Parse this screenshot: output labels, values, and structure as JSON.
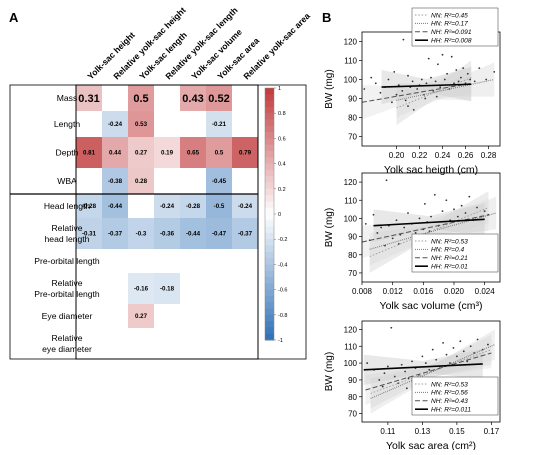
{
  "chart_data": [
    {
      "type": "heatmap",
      "panel_label": "A",
      "columns": [
        "Yolk-sac height",
        "Relative yolk-sac height",
        "Yolk-sac length",
        "Relative yolk-sac length",
        "Yolk-sac volume",
        "Yolk-sac area",
        "Relative yolk-sac area"
      ],
      "rows": [
        "Mass",
        "Length",
        "Depth",
        "WBA",
        "Head length",
        "Relative head length",
        "Pre-orbital length",
        "Relative Pre-orbital length",
        "Eye diameter",
        "Relative eye diameter"
      ],
      "row_labels_display": [
        [
          "Mass"
        ],
        [
          "Length"
        ],
        [
          "Depth"
        ],
        [
          "WBA"
        ],
        [
          "Head length"
        ],
        [
          "Relative",
          "head length"
        ],
        [
          "Pre-orbital length"
        ],
        [
          "Relative",
          "Pre-orbital length"
        ],
        [
          "Eye diameter"
        ],
        [
          "Relative",
          "eye diameter"
        ]
      ],
      "values": [
        [
          0.31,
          null,
          0.5,
          null,
          0.43,
          0.52,
          null
        ],
        [
          null,
          -0.24,
          0.53,
          null,
          null,
          -0.21,
          null
        ],
        [
          0.81,
          0.44,
          0.27,
          0.19,
          0.65,
          0.5,
          0.79
        ],
        [
          null,
          -0.38,
          0.28,
          null,
          null,
          -0.45,
          null
        ],
        [
          -0.28,
          -0.44,
          null,
          -0.24,
          -0.28,
          -0.5,
          -0.24
        ],
        [
          -0.31,
          -0.37,
          -0.3,
          -0.36,
          -0.44,
          -0.47,
          -0.37
        ],
        [
          null,
          null,
          null,
          null,
          null,
          null,
          null
        ],
        [
          null,
          null,
          -0.16,
          -0.18,
          null,
          null,
          null
        ],
        [
          null,
          null,
          0.27,
          null,
          null,
          null,
          null
        ],
        [
          null,
          null,
          null,
          null,
          null,
          null,
          null
        ]
      ],
      "value_labels": [
        [
          "0.31",
          "",
          "0.5",
          "",
          "0.43",
          "0.52",
          ""
        ],
        [
          "",
          "-0.24",
          "0.53",
          "",
          "",
          "-0.21",
          ""
        ],
        [
          "0.81",
          "0.44",
          "0.27",
          "0.19",
          "0.65",
          "0.5",
          "0.79"
        ],
        [
          "",
          "-0.38",
          "0.28",
          "",
          "",
          "-0.45",
          ""
        ],
        [
          "-0.28",
          "-0.44",
          "",
          "-0.24",
          "-0.28",
          "-0.5",
          "-0.24"
        ],
        [
          "-0.31",
          "-0.37",
          "-0.3",
          "-0.36",
          "-0.44",
          "-0.47",
          "-0.37"
        ],
        [
          "",
          "",
          "",
          "",
          "",
          "",
          ""
        ],
        [
          "",
          "",
          "-0.16",
          "-0.18",
          "",
          "",
          ""
        ],
        [
          "",
          "",
          "0.27",
          "",
          "",
          "",
          ""
        ],
        [
          "",
          "",
          "",
          "",
          "",
          "",
          ""
        ]
      ],
      "colorbar": {
        "range": [
          -1,
          1
        ],
        "ticks": [
          1,
          0.8,
          0.6,
          0.4,
          0.2,
          0,
          -0.2,
          -0.4,
          -0.6,
          -0.8,
          -1
        ],
        "tick_labels": [
          "1",
          "0.8",
          "0.6",
          "0.4",
          "0.2",
          "0",
          "-0.2",
          "-0.4",
          "-0.6",
          "-0.8",
          "-1"
        ],
        "positive_color": "#c0393b",
        "negative_color": "#2f6fb5"
      },
      "group_divider_after_row": "WBA"
    },
    {
      "type": "scatter",
      "panel_label": "B",
      "xlabel": "Yolk sac heigth (cm)",
      "ylabel": "BW (mg)",
      "xlim": [
        0.17,
        0.29
      ],
      "ylim": [
        65,
        125
      ],
      "xticks": [
        0.2,
        0.22,
        0.24,
        0.26,
        0.28
      ],
      "xtick_labels": [
        "0.20",
        "0.22",
        "0.24",
        "0.26",
        "0.28"
      ],
      "yticks": [
        70,
        80,
        90,
        100,
        110,
        120
      ],
      "ytick_labels": [
        "70",
        "80",
        "90",
        "100",
        "110",
        "120"
      ],
      "legend_position": "top-right",
      "series": [
        {
          "name": "NN: R²=0.45",
          "x_range": [
            0.2,
            0.265
          ],
          "y_fit": [
            85,
            101
          ]
        },
        {
          "name": "HN: R²=0.17",
          "x_range": [
            0.2,
            0.285
          ],
          "y_fit": [
            89,
            100
          ]
        },
        {
          "name": "NH: R²=0.091",
          "x_range": [
            0.17,
            0.265
          ],
          "y_fit": [
            88,
            98
          ]
        },
        {
          "name": "HH: R²=0.008",
          "x_range": [
            0.187,
            0.265
          ],
          "y_fit": [
            96,
            97.5
          ]
        }
      ],
      "points": [
        [
          0.172,
          95
        ],
        [
          0.178,
          101
        ],
        [
          0.182,
          98
        ],
        [
          0.186,
          93
        ],
        [
          0.19,
          96
        ],
        [
          0.193,
          100
        ],
        [
          0.196,
          88
        ],
        [
          0.198,
          104
        ],
        [
          0.2,
          92
        ],
        [
          0.202,
          97
        ],
        [
          0.205,
          94
        ],
        [
          0.206,
          121
        ],
        [
          0.208,
          89
        ],
        [
          0.21,
          102
        ],
        [
          0.212,
          96
        ],
        [
          0.214,
          99
        ],
        [
          0.215,
          84
        ],
        [
          0.218,
          95
        ],
        [
          0.22,
          97
        ],
        [
          0.222,
          100
        ],
        [
          0.224,
          92
        ],
        [
          0.226,
          98
        ],
        [
          0.228,
          111
        ],
        [
          0.23,
          101
        ],
        [
          0.232,
          94
        ],
        [
          0.234,
          99
        ],
        [
          0.236,
          108
        ],
        [
          0.238,
          96
        ],
        [
          0.24,
          113
        ],
        [
          0.242,
          100
        ],
        [
          0.244,
          103
        ],
        [
          0.246,
          95
        ],
        [
          0.248,
          112
        ],
        [
          0.25,
          98
        ],
        [
          0.252,
          105
        ],
        [
          0.254,
          99
        ],
        [
          0.256,
          101
        ],
        [
          0.258,
          106
        ],
        [
          0.26,
          98
        ],
        [
          0.262,
          103
        ],
        [
          0.264,
          100
        ],
        [
          0.268,
          99
        ],
        [
          0.272,
          106
        ],
        [
          0.278,
          100
        ],
        [
          0.285,
          104
        ],
        [
          0.21,
          86
        ],
        [
          0.225,
          90
        ],
        [
          0.235,
          91
        ]
      ]
    },
    {
      "type": "scatter",
      "panel_label": "",
      "xlabel": "Yolk sac volume (cm³)",
      "ylabel": "BW (mg)",
      "xlim": [
        0.008,
        0.026
      ],
      "ylim": [
        65,
        125
      ],
      "xticks": [
        0.008,
        0.012,
        0.016,
        0.02,
        0.024
      ],
      "xtick_labels": [
        "0.008",
        "0.012",
        "0.016",
        "0.020",
        "0.024"
      ],
      "yticks": [
        70,
        80,
        90,
        100,
        110,
        120
      ],
      "ytick_labels": [
        "70",
        "80",
        "90",
        "100",
        "110",
        "120"
      ],
      "legend_position": "bottom-right",
      "series": [
        {
          "name": "NN: R²=0.53",
          "x_range": [
            0.009,
            0.0245
          ],
          "y_fit": [
            79,
            106
          ]
        },
        {
          "name": "HN: R²=0.4",
          "x_range": [
            0.009,
            0.0255
          ],
          "y_fit": [
            83,
            103
          ]
        },
        {
          "name": "NH: R²=0.21",
          "x_range": [
            0.008,
            0.0245
          ],
          "y_fit": [
            87,
            102
          ]
        },
        {
          "name": "HH: R²=0.01",
          "x_range": [
            0.0095,
            0.024
          ],
          "y_fit": [
            96,
            99.5
          ]
        }
      ],
      "points": [
        [
          0.0085,
          97
        ],
        [
          0.009,
          88
        ],
        [
          0.0095,
          102
        ],
        [
          0.01,
          92
        ],
        [
          0.0105,
          95
        ],
        [
          0.011,
          85
        ],
        [
          0.0112,
          121
        ],
        [
          0.0115,
          96
        ],
        [
          0.012,
          89
        ],
        [
          0.0125,
          99
        ],
        [
          0.013,
          91
        ],
        [
          0.0135,
          95
        ],
        [
          0.014,
          103
        ],
        [
          0.0145,
          97
        ],
        [
          0.015,
          92
        ],
        [
          0.0155,
          100
        ],
        [
          0.016,
          94
        ],
        [
          0.0162,
          108
        ],
        [
          0.0165,
          98
        ],
        [
          0.017,
          101
        ],
        [
          0.0175,
          113
        ],
        [
          0.018,
          96
        ],
        [
          0.0185,
          104
        ],
        [
          0.019,
          110
        ],
        [
          0.0195,
          99
        ],
        [
          0.02,
          105
        ],
        [
          0.0205,
          101
        ],
        [
          0.021,
          107
        ],
        [
          0.0215,
          103
        ],
        [
          0.022,
          112
        ],
        [
          0.0225,
          99
        ],
        [
          0.023,
          106
        ],
        [
          0.0235,
          101
        ],
        [
          0.024,
          104
        ],
        [
          0.0245,
          102
        ],
        [
          0.0128,
          86
        ],
        [
          0.0148,
          90
        ],
        [
          0.0168,
          93
        ]
      ]
    },
    {
      "type": "scatter",
      "panel_label": "",
      "xlabel": "Yolk sac area (cm²)",
      "ylabel": "BW (mg)",
      "xlim": [
        0.095,
        0.175
      ],
      "ylim": [
        65,
        125
      ],
      "xticks": [
        0.11,
        0.13,
        0.15,
        0.17
      ],
      "xtick_labels": [
        "0.11",
        "0.13",
        "0.15",
        "0.17"
      ],
      "yticks": [
        70,
        80,
        90,
        100,
        110,
        120
      ],
      "ytick_labels": [
        "70",
        "80",
        "90",
        "100",
        "110",
        "120"
      ],
      "legend_position": "bottom-right",
      "series": [
        {
          "name": "NN: R²=0.53",
          "x_range": [
            0.1,
            0.17
          ],
          "y_fit": [
            82,
            108
          ]
        },
        {
          "name": "HN: R²=0.56",
          "x_range": [
            0.1,
            0.172
          ],
          "y_fit": [
            79,
            111
          ]
        },
        {
          "name": "NH: R²=0.43",
          "x_range": [
            0.097,
            0.17
          ],
          "y_fit": [
            84,
            106
          ]
        },
        {
          "name": "HH: R²=0.011",
          "x_range": [
            0.096,
            0.165
          ],
          "y_fit": [
            96,
            99.5
          ]
        }
      ],
      "points": [
        [
          0.098,
          100
        ],
        [
          0.102,
          96
        ],
        [
          0.105,
          90
        ],
        [
          0.108,
          94
        ],
        [
          0.11,
          98
        ],
        [
          0.112,
          121
        ],
        [
          0.114,
          92
        ],
        [
          0.116,
          88
        ],
        [
          0.118,
          99
        ],
        [
          0.12,
          95
        ],
        [
          0.122,
          91
        ],
        [
          0.124,
          101
        ],
        [
          0.126,
          97
        ],
        [
          0.128,
          93
        ],
        [
          0.13,
          104
        ],
        [
          0.132,
          100
        ],
        [
          0.134,
          96
        ],
        [
          0.136,
          108
        ],
        [
          0.138,
          102
        ],
        [
          0.14,
          98
        ],
        [
          0.142,
          112
        ],
        [
          0.144,
          105
        ],
        [
          0.146,
          100
        ],
        [
          0.148,
          109
        ],
        [
          0.15,
          104
        ],
        [
          0.152,
          113
        ],
        [
          0.154,
          107
        ],
        [
          0.156,
          101
        ],
        [
          0.158,
          110
        ],
        [
          0.16,
          106
        ],
        [
          0.162,
          114
        ],
        [
          0.165,
          108
        ],
        [
          0.168,
          111
        ],
        [
          0.107,
          86
        ],
        [
          0.121,
          85
        ]
      ]
    }
  ]
}
